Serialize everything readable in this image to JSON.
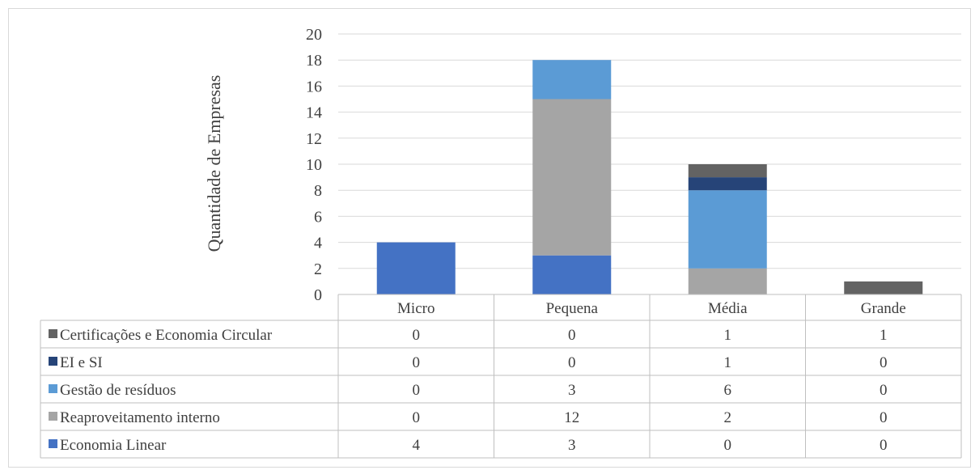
{
  "chart_data": {
    "type": "bar",
    "stacked": true,
    "ylabel": "Quantidade de Empresas",
    "xlabel": "",
    "ylim": [
      0,
      20
    ],
    "yticks": [
      0,
      2,
      4,
      6,
      8,
      10,
      12,
      14,
      16,
      18,
      20
    ],
    "grid": true,
    "legend": "data-table-left",
    "categories": [
      "Micro",
      "Pequena",
      "Média",
      "Grande"
    ],
    "series": [
      {
        "name": "Economia Linear",
        "color": "#4472c4",
        "values": [
          4,
          3,
          0,
          0
        ]
      },
      {
        "name": "Reaproveitamento interno",
        "color": "#a5a5a5",
        "values": [
          0,
          12,
          2,
          0
        ]
      },
      {
        "name": "Gestão de resíduos",
        "color": "#5b9bd5",
        "values": [
          0,
          3,
          6,
          0
        ]
      },
      {
        "name": "EI e SI",
        "color": "#264478",
        "values": [
          0,
          0,
          1,
          0
        ]
      },
      {
        "name": "Certificações e Economia Circular",
        "color": "#636363",
        "values": [
          0,
          0,
          1,
          1
        ]
      }
    ],
    "table_order": [
      4,
      3,
      2,
      1,
      0
    ]
  }
}
